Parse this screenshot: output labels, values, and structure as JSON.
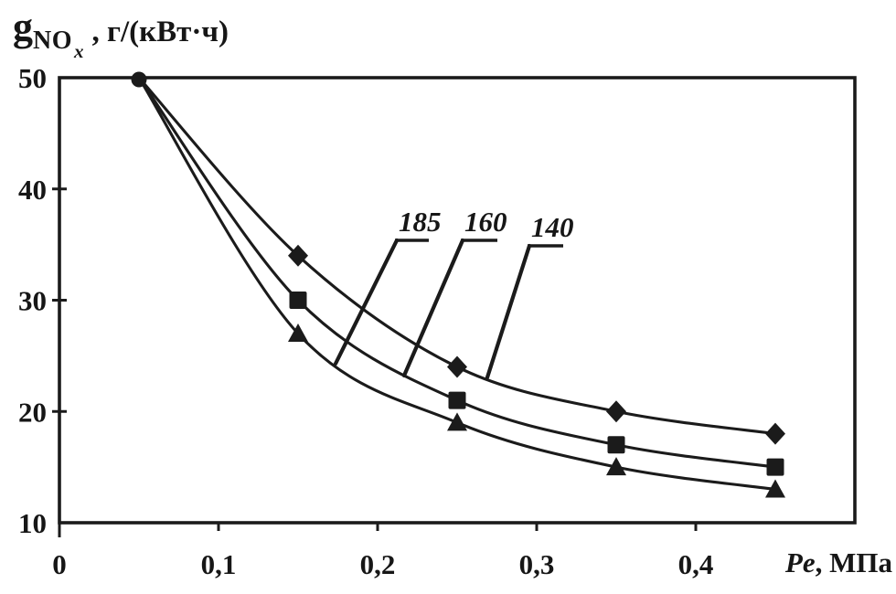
{
  "figure": {
    "background": "#ffffff",
    "ink_color": "#1b1b1b",
    "y_axis_title": {
      "symbol": "g",
      "sub": "NO",
      "subsub": "x",
      "units": ", г/(кВт·ч)"
    },
    "x_axis_title": {
      "italic_part": "Pе",
      "rest": ", МПа"
    }
  },
  "chart_data": {
    "type": "line",
    "title": "",
    "xlabel": "Pе, МПа",
    "ylabel": "gNOx, г/(кВт·ч)",
    "xlim": [
      0,
      0.5
    ],
    "ylim": [
      10,
      50
    ],
    "grid": false,
    "legend": "leader-line annotations on curves",
    "x": [
      0.05,
      0.15,
      0.25,
      0.35,
      0.45
    ],
    "x_ticks": [
      {
        "v": 0,
        "label": "0"
      },
      {
        "v": 0.1,
        "label": "0,1"
      },
      {
        "v": 0.2,
        "label": "0,2"
      },
      {
        "v": 0.3,
        "label": "0,3"
      },
      {
        "v": 0.4,
        "label": "0,4"
      }
    ],
    "y_ticks": [
      {
        "v": 10,
        "label": "10"
      },
      {
        "v": 20,
        "label": "20"
      },
      {
        "v": 30,
        "label": "30"
      },
      {
        "v": 40,
        "label": "40"
      },
      {
        "v": 50,
        "label": "50"
      }
    ],
    "series": [
      {
        "name": "140",
        "marker": "diamond",
        "values": [
          50,
          34,
          24,
          20,
          18
        ]
      },
      {
        "name": "160",
        "marker": "square",
        "values": [
          50,
          30,
          21,
          17,
          15
        ]
      },
      {
        "name": "185",
        "marker": "triangle",
        "values": [
          50,
          27,
          19,
          15,
          13
        ]
      }
    ],
    "annotations": [
      {
        "text": "185",
        "series": "185"
      },
      {
        "text": "160",
        "series": "160"
      },
      {
        "text": "140",
        "series": "140"
      }
    ]
  }
}
